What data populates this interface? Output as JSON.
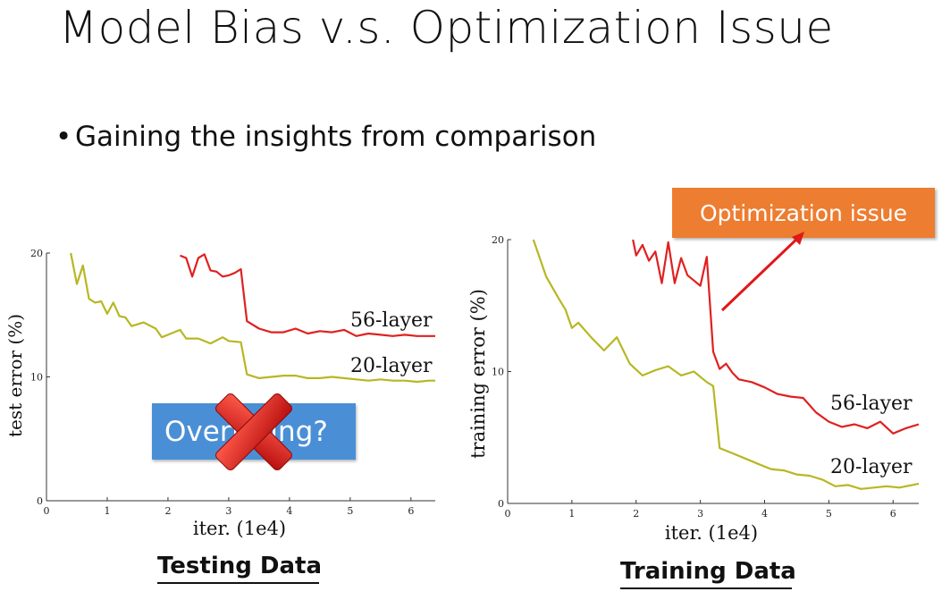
{
  "slide": {
    "title": "Model Bias v.s. Optimization Issue",
    "bullet": "Gaining the insights from comparison",
    "colors": {
      "series_56": "#e02020",
      "series_20": "#b7b724",
      "callout": "#ed7d31",
      "overfit_box": "#4a8fd6",
      "cross": "#d42020"
    }
  },
  "left_panel": {
    "caption": "Testing Data",
    "overlay_text": "Overfitting?",
    "overlay_icon": "red-x-icon"
  },
  "right_panel": {
    "caption": "Training Data",
    "callout_text": "Optimization issue"
  },
  "chart_data": [
    {
      "type": "line",
      "xlabel": "iter. (1e4)",
      "ylabel": "test error (%)",
      "xlim": [
        0,
        6.4
      ],
      "ylim": [
        0,
        20
      ],
      "xticks": [
        "0",
        "1",
        "2",
        "3",
        "4",
        "5",
        "6"
      ],
      "yticks": [
        "0",
        "10",
        "20"
      ],
      "grid": false,
      "series": [
        {
          "name": "56-layer",
          "x": [
            2.2,
            2.3,
            2.4,
            2.5,
            2.6,
            2.7,
            2.8,
            2.9,
            3.0,
            3.1,
            3.2,
            3.3,
            3.5,
            3.7,
            3.9,
            4.1,
            4.3,
            4.5,
            4.7,
            4.9,
            5.1,
            5.3,
            5.5,
            5.7,
            5.9,
            6.1,
            6.3,
            6.4
          ],
          "y": [
            19.8,
            19.6,
            18.1,
            19.6,
            19.9,
            18.6,
            18.5,
            18.1,
            18.2,
            18.4,
            18.7,
            14.5,
            13.9,
            13.6,
            13.6,
            13.9,
            13.5,
            13.7,
            13.6,
            13.8,
            13.3,
            13.5,
            13.4,
            13.3,
            13.4,
            13.3,
            13.3,
            13.3
          ]
        },
        {
          "name": "20-layer",
          "x": [
            0.4,
            0.5,
            0.6,
            0.7,
            0.8,
            0.9,
            1.0,
            1.1,
            1.2,
            1.3,
            1.4,
            1.6,
            1.8,
            1.9,
            2.0,
            2.2,
            2.3,
            2.5,
            2.7,
            2.9,
            3.0,
            3.2,
            3.3,
            3.5,
            3.7,
            3.9,
            4.1,
            4.3,
            4.5,
            4.7,
            4.9,
            5.1,
            5.3,
            5.5,
            5.7,
            5.9,
            6.1,
            6.3,
            6.4
          ],
          "y": [
            20.0,
            17.5,
            19.0,
            16.3,
            16.0,
            16.1,
            15.1,
            16.0,
            14.9,
            14.8,
            14.1,
            14.4,
            13.9,
            13.2,
            13.4,
            13.8,
            13.1,
            13.1,
            12.7,
            13.2,
            12.9,
            12.8,
            10.2,
            9.9,
            10.0,
            10.1,
            10.1,
            9.9,
            9.9,
            10.0,
            9.9,
            9.8,
            9.7,
            9.8,
            9.7,
            9.7,
            9.6,
            9.7,
            9.7
          ]
        }
      ]
    },
    {
      "type": "line",
      "xlabel": "iter. (1e4)",
      "ylabel": "training error (%)",
      "xlim": [
        0,
        6.4
      ],
      "ylim": [
        0,
        20
      ],
      "xticks": [
        "0",
        "1",
        "2",
        "3",
        "4",
        "5",
        "6"
      ],
      "yticks": [
        "0",
        "10",
        "20"
      ],
      "grid": false,
      "series": [
        {
          "name": "56-layer",
          "x": [
            1.95,
            2.0,
            2.1,
            2.2,
            2.3,
            2.4,
            2.5,
            2.6,
            2.7,
            2.8,
            2.9,
            3.0,
            3.1,
            3.2,
            3.3,
            3.4,
            3.5,
            3.6,
            3.8,
            4.0,
            4.2,
            4.4,
            4.6,
            4.8,
            5.0,
            5.2,
            5.4,
            5.6,
            5.8,
            6.0,
            6.2,
            6.4
          ],
          "y": [
            20.0,
            18.8,
            19.6,
            18.4,
            19.1,
            16.7,
            19.8,
            16.7,
            18.6,
            17.3,
            16.9,
            16.5,
            18.7,
            11.5,
            10.2,
            10.6,
            9.9,
            9.4,
            9.2,
            8.8,
            8.3,
            8.1,
            8.0,
            6.9,
            6.2,
            5.8,
            6.0,
            5.7,
            6.2,
            5.3,
            5.7,
            6.0
          ]
        },
        {
          "name": "20-layer",
          "x": [
            0.4,
            0.6,
            0.8,
            0.9,
            1.0,
            1.1,
            1.3,
            1.5,
            1.7,
            1.9,
            2.1,
            2.3,
            2.5,
            2.7,
            2.9,
            3.1,
            3.2,
            3.3,
            3.5,
            3.7,
            3.9,
            4.1,
            4.3,
            4.5,
            4.7,
            4.9,
            5.1,
            5.3,
            5.5,
            5.7,
            5.9,
            6.1,
            6.3,
            6.4
          ],
          "y": [
            20.0,
            17.2,
            15.5,
            14.7,
            13.3,
            13.7,
            12.6,
            11.6,
            12.6,
            10.6,
            9.7,
            10.1,
            10.4,
            9.7,
            10.0,
            9.2,
            8.9,
            4.2,
            3.8,
            3.4,
            3.0,
            2.6,
            2.5,
            2.2,
            2.1,
            1.8,
            1.3,
            1.4,
            1.1,
            1.2,
            1.3,
            1.2,
            1.4,
            1.5
          ]
        }
      ]
    }
  ]
}
